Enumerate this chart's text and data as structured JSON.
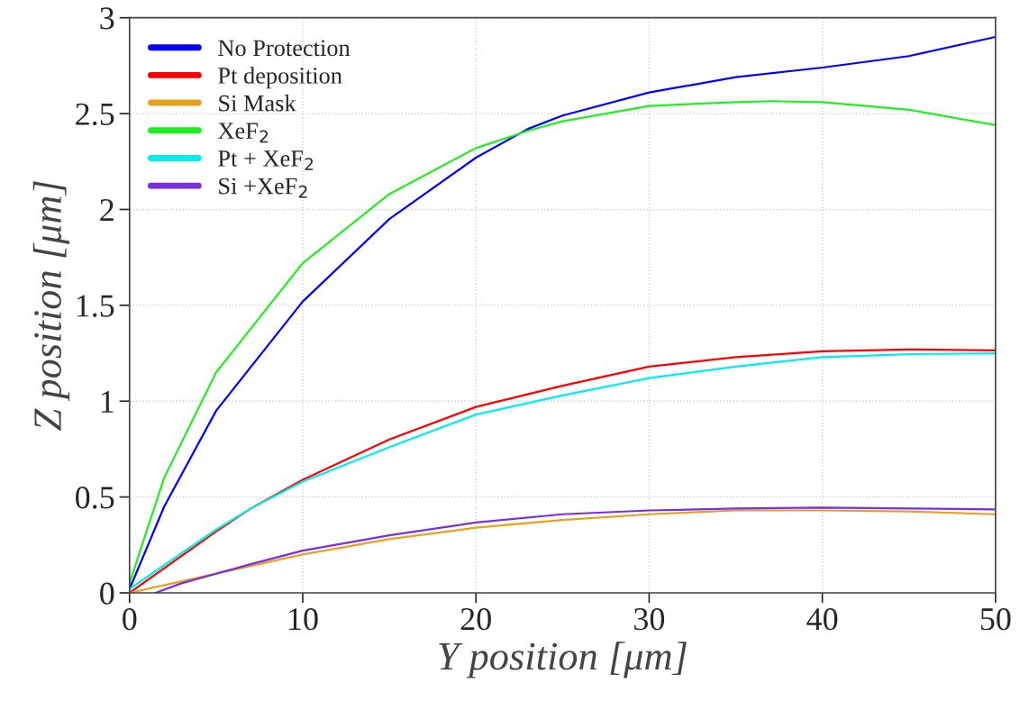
{
  "chart_data": {
    "type": "line",
    "xlabel": "Y position [μm]",
    "ylabel": "Z position [μm]",
    "xlim": [
      0,
      50
    ],
    "ylim": [
      0,
      3
    ],
    "xticks": [
      0,
      10,
      20,
      30,
      40,
      50
    ],
    "yticks": [
      0,
      0.5,
      1,
      1.5,
      2,
      2.5,
      3
    ],
    "grid": true,
    "legend": "top left",
    "marker": "none",
    "line_style": "solid",
    "series": [
      {
        "name": "No Protection",
        "color": "#0000ff",
        "x": [
          0,
          2,
          5,
          10,
          15,
          20,
          23,
          25,
          30,
          35,
          40,
          45,
          50
        ],
        "values": [
          0.02,
          0.45,
          0.95,
          1.52,
          1.95,
          2.27,
          2.42,
          2.49,
          2.61,
          2.69,
          2.74,
          2.8,
          2.9
        ]
      },
      {
        "name": "Pt deposition",
        "color": "#ff0000",
        "x": [
          0,
          5,
          7,
          10,
          15,
          20,
          25,
          30,
          35,
          40,
          45,
          50
        ],
        "values": [
          0.0,
          0.32,
          0.44,
          0.59,
          0.8,
          0.97,
          1.08,
          1.18,
          1.23,
          1.26,
          1.27,
          1.265
        ]
      },
      {
        "name": "Si Mask",
        "color": "#e8a020",
        "x": [
          0,
          5,
          7,
          10,
          15,
          20,
          25,
          30,
          35,
          40,
          45,
          50
        ],
        "values": [
          0.0,
          0.1,
          0.14,
          0.2,
          0.28,
          0.34,
          0.38,
          0.41,
          0.43,
          0.43,
          0.425,
          0.41
        ]
      },
      {
        "name": "XeF$_{2}$",
        "color": "#22ee22",
        "x": [
          0,
          2,
          5,
          10,
          15,
          20,
          23,
          25,
          30,
          35,
          37,
          40,
          45,
          50
        ],
        "values": [
          0.05,
          0.6,
          1.15,
          1.72,
          2.08,
          2.32,
          2.41,
          2.46,
          2.54,
          2.56,
          2.565,
          2.56,
          2.52,
          2.44
        ]
      },
      {
        "name": "Pt + XeF$_{2}$",
        "color": "#00eeee",
        "x": [
          0,
          5,
          7,
          10,
          15,
          20,
          25,
          30,
          35,
          40,
          45,
          50
        ],
        "values": [
          0.02,
          0.33,
          0.44,
          0.58,
          0.76,
          0.93,
          1.03,
          1.12,
          1.18,
          1.23,
          1.245,
          1.25
        ]
      },
      {
        "name": "Si +XeF$_{2}$",
        "color": "#7a2ee0",
        "x": [
          1.5,
          3,
          5,
          7,
          10,
          15,
          20,
          25,
          30,
          35,
          40,
          45,
          50
        ],
        "values": [
          0.0,
          0.05,
          0.1,
          0.15,
          0.22,
          0.3,
          0.367,
          0.41,
          0.43,
          0.44,
          0.445,
          0.44,
          0.435
        ]
      }
    ]
  }
}
